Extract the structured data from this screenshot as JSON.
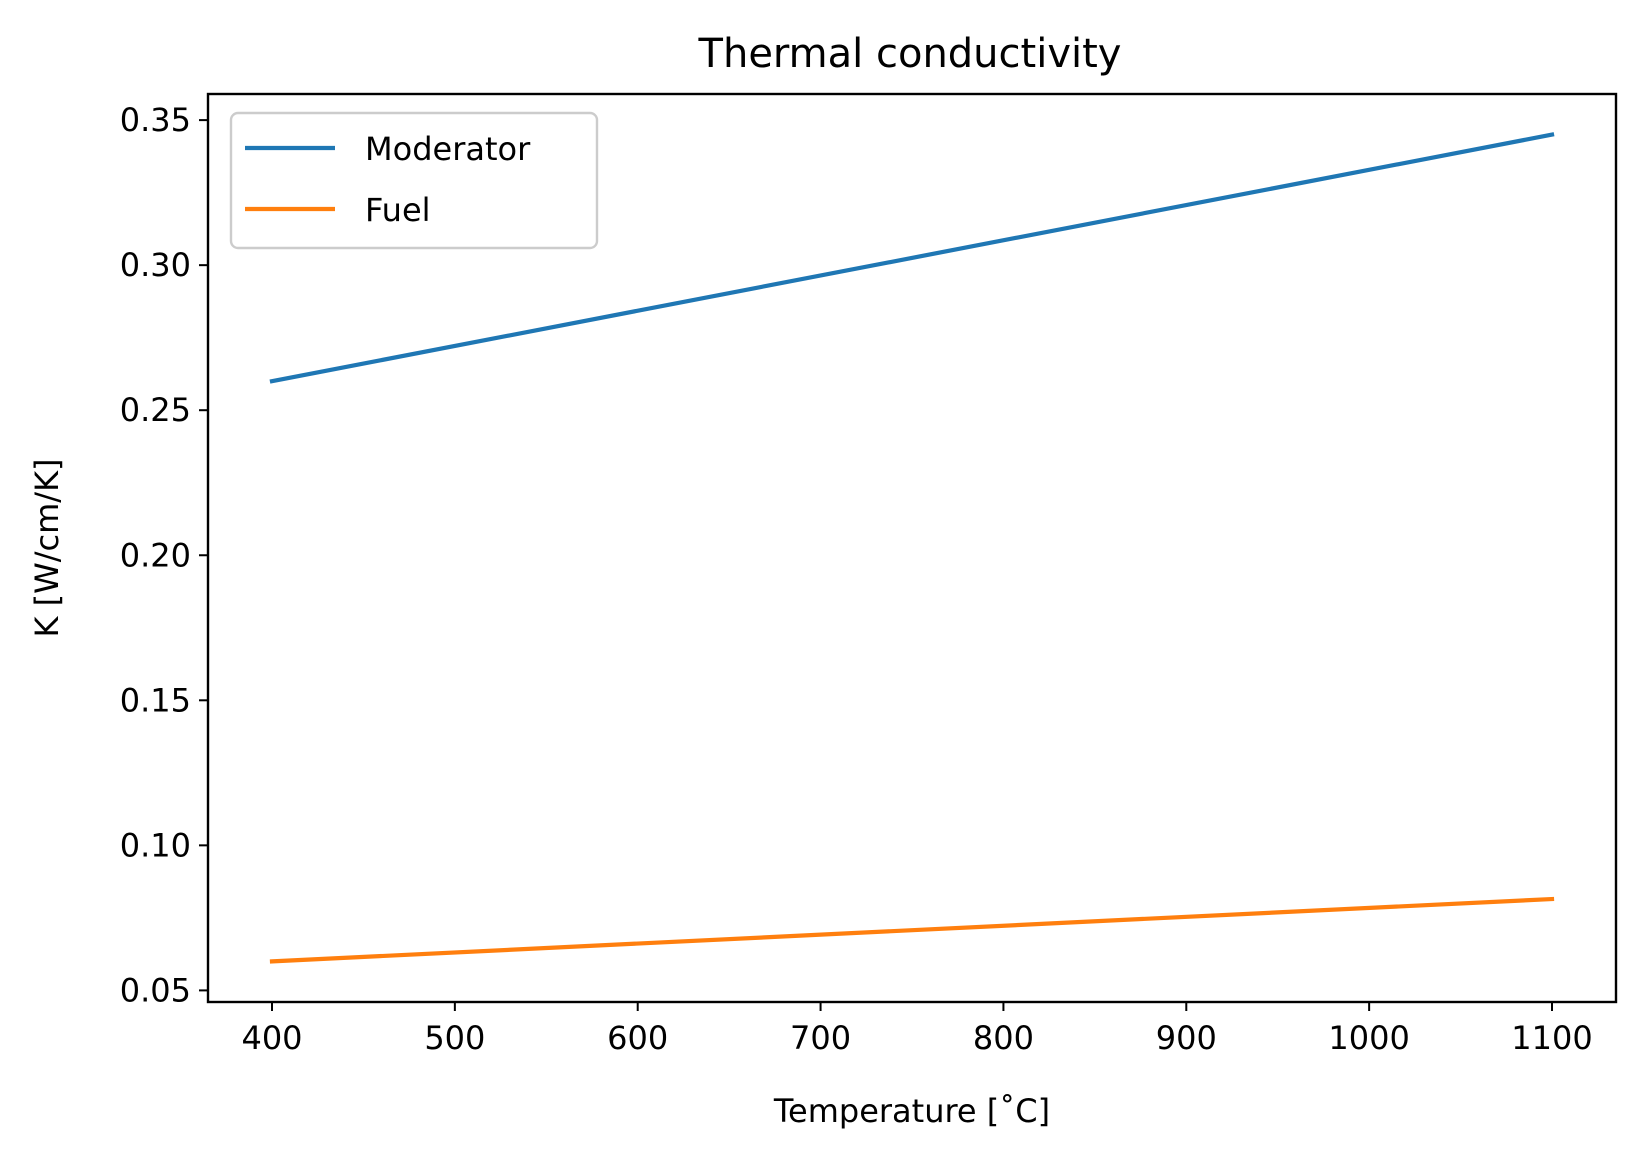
{
  "chart_data": {
    "type": "line",
    "title": "Thermal conductivity",
    "xlabel": "Temperature [˚C]",
    "ylabel": "K [W/cm/K]",
    "xlim": [
      365,
      1135
    ],
    "ylim": [
      0.046,
      0.359
    ],
    "xticks": [
      400,
      500,
      600,
      700,
      800,
      900,
      1000,
      1100
    ],
    "xtick_labels": [
      "400",
      "500",
      "600",
      "700",
      "800",
      "900",
      "1000",
      "1100"
    ],
    "yticks": [
      0.05,
      0.1,
      0.15,
      0.2,
      0.25,
      0.3,
      0.35
    ],
    "ytick_labels": [
      "0.05",
      "0.10",
      "0.15",
      "0.20",
      "0.25",
      "0.30",
      "0.35"
    ],
    "grid": false,
    "legend_position": "upper left",
    "series": [
      {
        "name": "Moderator",
        "color": "#1f77b4",
        "x": [
          400,
          1100
        ],
        "y": [
          0.26,
          0.345
        ]
      },
      {
        "name": "Fuel",
        "color": "#ff7f0e",
        "x": [
          400,
          1100
        ],
        "y": [
          0.06,
          0.0815
        ]
      }
    ]
  }
}
